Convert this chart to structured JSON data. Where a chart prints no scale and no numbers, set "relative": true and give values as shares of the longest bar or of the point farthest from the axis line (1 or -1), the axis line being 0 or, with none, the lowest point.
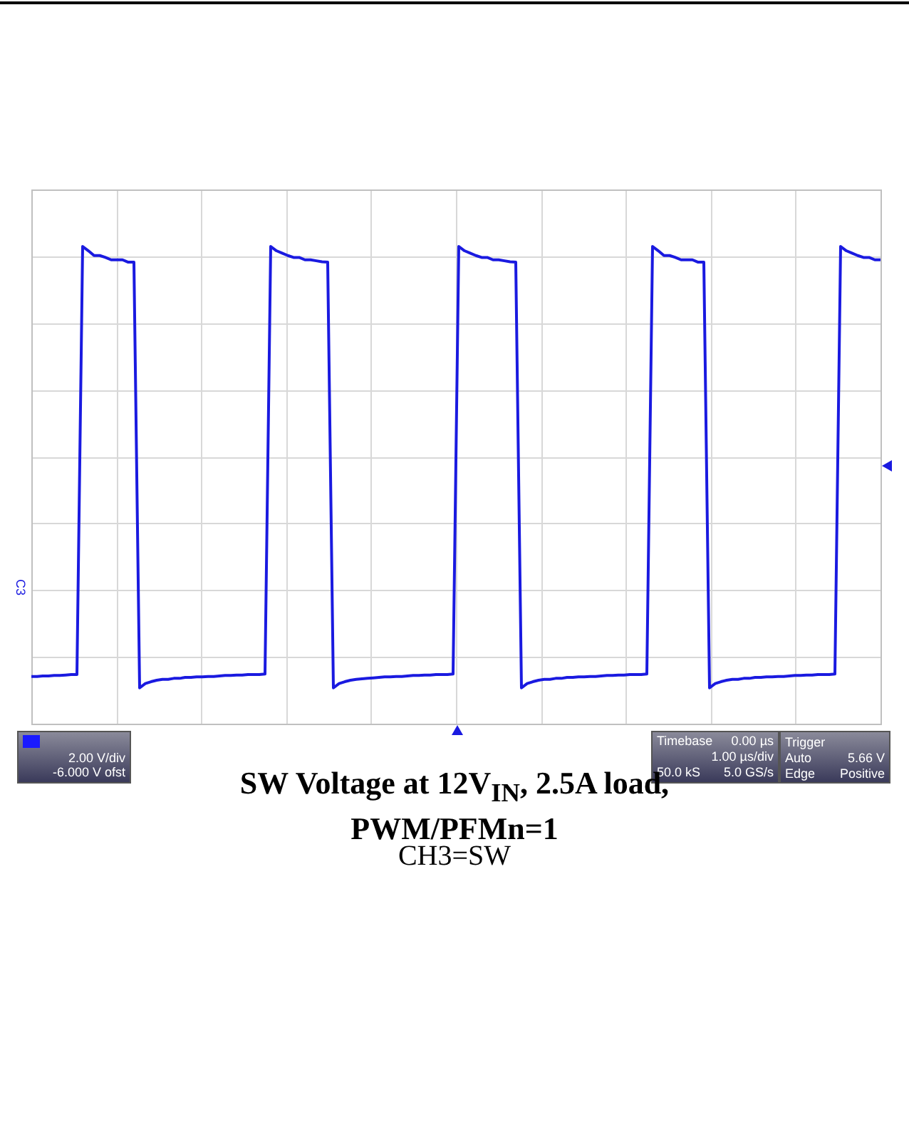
{
  "chart_data": {
    "type": "line",
    "title": "SW Voltage at 12V$_{IN}$, 2.5A load, PWM/PFMn=1",
    "subtitle": "CH3=SW",
    "relative": true,
    "grid": true,
    "legend": false,
    "marker": "none",
    "line_style": "solid",
    "annotations": [
      "C3",
      "2.00 V/div",
      "-6.000 V ofst",
      "Timebase",
      "0.00 µs",
      "1.00 µs/div",
      "50.0 kS",
      "5.0 GS/s",
      "Trigger",
      "Auto",
      "5.66 V",
      "Edge",
      "Positive"
    ],
    "categories": [
      null,
      null,
      null,
      null,
      null,
      null,
      null,
      null,
      null,
      null,
      null,
      null,
      null,
      null,
      null,
      null,
      null,
      null,
      null,
      null,
      null,
      null,
      null,
      null,
      null,
      null,
      null,
      null,
      null,
      null,
      null,
      null,
      null,
      null,
      null,
      null,
      null,
      null,
      null,
      null,
      null,
      null,
      null,
      null,
      null,
      null,
      null,
      null,
      null,
      null,
      null,
      null,
      null,
      null,
      null,
      null,
      null,
      null,
      null,
      null,
      null,
      null,
      null,
      null,
      null,
      null,
      null,
      null,
      null,
      null,
      null,
      null,
      null,
      null,
      null,
      null,
      null,
      null,
      null,
      null,
      null,
      null,
      null,
      null,
      null,
      null,
      null,
      null,
      null,
      null,
      null,
      null,
      null,
      null,
      null,
      null,
      null,
      null,
      null,
      null,
      null,
      null,
      null,
      null,
      null,
      null,
      null,
      null,
      null,
      null,
      null,
      null,
      null,
      null,
      null,
      null,
      null,
      null,
      null,
      null,
      null,
      null,
      null,
      null,
      null,
      null,
      null,
      null,
      null,
      null,
      null,
      null,
      null,
      null,
      null,
      null,
      null,
      null,
      null,
      null,
      null,
      null,
      null,
      null,
      null,
      null,
      null,
      null,
      null,
      null
    ],
    "series": [
      {
        "color": "#1a1ae0",
        "values": [
          0.099,
          0.099,
          0.1,
          0.1,
          0.101,
          0.101,
          0.102,
          0.103,
          0.103,
          1.0,
          0.991,
          0.981,
          0.981,
          0.977,
          0.972,
          0.972,
          0.972,
          0.967,
          0.967,
          0.075,
          0.084,
          0.088,
          0.091,
          0.093,
          0.093,
          0.095,
          0.095,
          0.097,
          0.097,
          0.098,
          0.098,
          0.099,
          0.099,
          0.1,
          0.101,
          0.101,
          0.102,
          0.102,
          0.103,
          0.103,
          0.103,
          0.104,
          1.0,
          0.991,
          0.986,
          0.981,
          0.977,
          0.977,
          0.972,
          0.972,
          0.97,
          0.968,
          0.967,
          0.075,
          0.084,
          0.088,
          0.091,
          0.093,
          0.094,
          0.095,
          0.096,
          0.097,
          0.098,
          0.098,
          0.099,
          0.099,
          0.1,
          0.101,
          0.101,
          0.102,
          0.102,
          0.103,
          0.103,
          0.103,
          0.104,
          1.0,
          0.991,
          0.986,
          0.981,
          0.977,
          0.977,
          0.972,
          0.972,
          0.97,
          0.968,
          0.967,
          0.075,
          0.084,
          0.088,
          0.091,
          0.093,
          0.093,
          0.095,
          0.095,
          0.097,
          0.097,
          0.098,
          0.098,
          0.099,
          0.099,
          0.1,
          0.101,
          0.101,
          0.102,
          0.102,
          0.103,
          0.103,
          0.103,
          0.104,
          1.0,
          0.991,
          0.981,
          0.981,
          0.977,
          0.972,
          0.972,
          0.972,
          0.967,
          0.967,
          0.075,
          0.084,
          0.088,
          0.091,
          0.093,
          0.093,
          0.095,
          0.095,
          0.097,
          0.097,
          0.098,
          0.098,
          0.099,
          0.099,
          0.1,
          0.101,
          0.101,
          0.102,
          0.102,
          0.103,
          0.103,
          0.103,
          0.104,
          1.0,
          0.991,
          0.986,
          0.981,
          0.977,
          0.977,
          0.972,
          0.972
        ]
      }
    ]
  }
}
